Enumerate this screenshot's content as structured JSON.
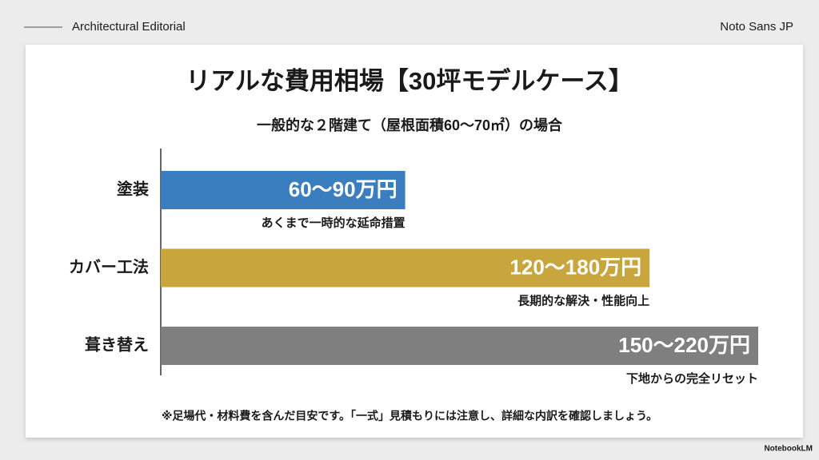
{
  "header": {
    "left": "Architectural Editorial",
    "right": "Noto Sans JP"
  },
  "chart_data": {
    "type": "bar",
    "orientation": "horizontal",
    "title": "リアルな費用相場【30坪モデルケース】",
    "subtitle": "一般的な２階建て（屋根面積60〜70㎡）の場合",
    "categories": [
      "塗装",
      "カバー工法",
      "葺き替え"
    ],
    "low": [
      60,
      120,
      150
    ],
    "high": [
      90,
      180,
      220
    ],
    "value_labels": [
      "60〜90万円",
      "120〜180万円",
      "150〜220万円"
    ],
    "notes": [
      "あくまで一時的な延命措置",
      "長期的な解決・性能向上",
      "下地からの完全リセット"
    ],
    "colors": [
      "#3a7ebf",
      "#c9a53e",
      "#7f7f7f"
    ],
    "footnote": "※足場代・材料費を含んだ目安です。「一式」見積もりには注意し、詳細な内訳を確認しましょう。"
  },
  "watermark": "NotebookLM"
}
